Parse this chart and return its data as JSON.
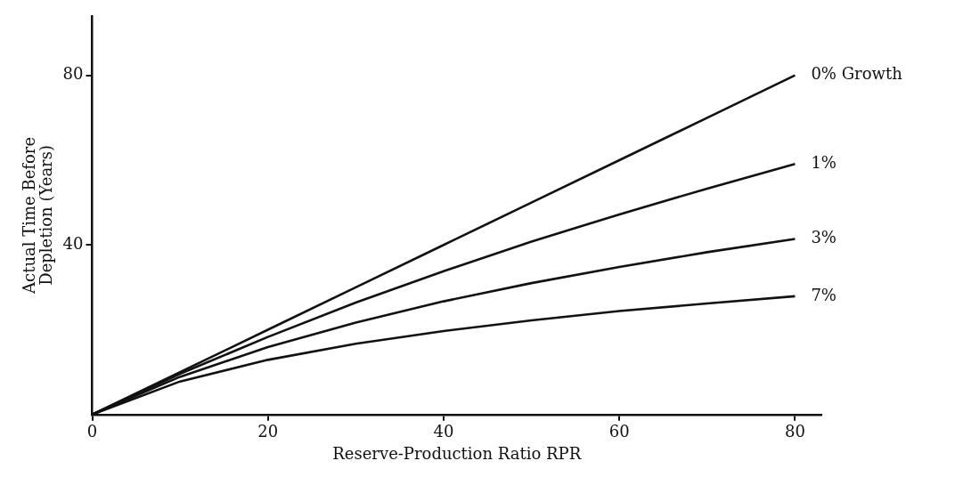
{
  "chart_data": {
    "type": "line",
    "xlabel": "Reserve-Production Ratio RPR",
    "ylabel": "Actual Time Before\nDepletion (Years)",
    "x": [
      0,
      10,
      20,
      30,
      40,
      50,
      60,
      70,
      80
    ],
    "series": [
      {
        "name": "0% Growth",
        "color": "#111111",
        "values": [
          0,
          10,
          20,
          30,
          40,
          50,
          60,
          70,
          80
        ]
      },
      {
        "name": "1%",
        "color": "#111111",
        "values": [
          0,
          9.6,
          18.3,
          26.4,
          33.8,
          40.8,
          47.2,
          53.3,
          59.1
        ]
      },
      {
        "name": "3%",
        "color": "#111111",
        "values": [
          0,
          8.9,
          15.9,
          21.7,
          26.7,
          31,
          34.8,
          38.3,
          41.4
        ]
      },
      {
        "name": "7%",
        "color": "#111111",
        "values": [
          0,
          7.8,
          12.9,
          16.7,
          19.7,
          22.2,
          24.4,
          26.2,
          27.9
        ]
      }
    ],
    "xlim": [
      0,
      83
    ],
    "xticks": [
      0,
      20,
      40,
      60,
      80
    ],
    "ylim": [
      0,
      94
    ],
    "yticks": [
      40,
      80
    ],
    "grid": false,
    "legend": false,
    "marker": "none",
    "line_style": "solid"
  }
}
